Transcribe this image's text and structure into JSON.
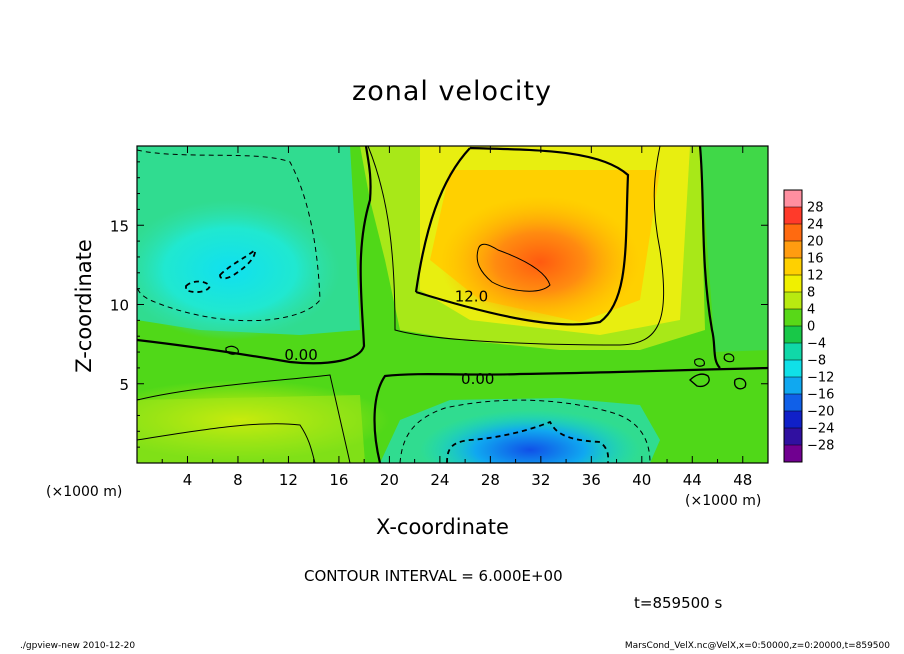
{
  "chart_data": {
    "type": "contour",
    "title": "zonal velocity",
    "xlabel": "X-coordinate",
    "ylabel": "Z-coordinate",
    "x_unit": "(×1000 m)",
    "y_unit": "(×1000 m)",
    "xlim": [
      0,
      50
    ],
    "ylim": [
      0,
      20
    ],
    "x_ticks": [
      4,
      8,
      12,
      16,
      20,
      24,
      28,
      32,
      36,
      40,
      44,
      48
    ],
    "y_ticks": [
      5,
      10,
      15
    ],
    "contour_interval_text": "CONTOUR INTERVAL = 6.000E+00",
    "contour_labels": [
      {
        "text": "12.0",
        "x": 26.5,
        "y": 10.2
      },
      {
        "text": "0.00",
        "x": 13.0,
        "y": 6.5
      },
      {
        "text": "0.00",
        "x": 27.0,
        "y": 5.0
      }
    ],
    "colorbar": {
      "levels": [
        "28",
        "24",
        "20",
        "16",
        "12",
        "8",
        "4",
        "0",
        "−4",
        "−8",
        "−12",
        "−16",
        "−20",
        "−24",
        "−28"
      ],
      "colors": [
        "#ff8fa0",
        "#ff3a2a",
        "#ff6a10",
        "#ff9c10",
        "#ffd000",
        "#f0f000",
        "#b8ea10",
        "#58d818",
        "#18c848",
        "#10d8a8",
        "#10e0e8",
        "#10a8f0",
        "#1060e8",
        "#1020c8",
        "#3010a0",
        "#700090"
      ]
    },
    "features": [
      {
        "name": "max",
        "value_range": "18 to 24",
        "x": 30,
        "y": 12.2
      },
      {
        "name": "min-left",
        "value_range": "-12 to -6",
        "x": 7,
        "y": 12
      },
      {
        "name": "min-bottom",
        "value_range": "-18 to -12",
        "x": 31,
        "y": 1.5
      }
    ]
  },
  "annotations": {
    "time": "t=859500 s",
    "footer_left": "./gpview-new  2010-12-20",
    "footer_right": "MarsCond_VelX.nc@VelX,x=0:50000,z=0:20000,t=859500"
  }
}
